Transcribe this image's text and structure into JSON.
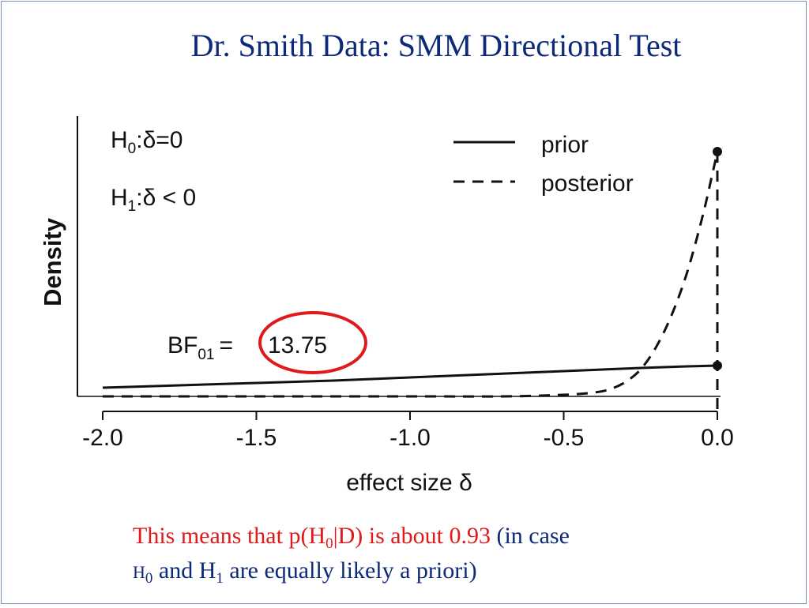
{
  "slide": {
    "title": "Dr. Smith Data: SMM Directional Test",
    "note_line1_red": "This means that p(H",
    "note_line1_red_sub": "0",
    "note_line1_red_end": "|D) is about 0.93",
    "note_line1_navy": " (in case",
    "note_line2_h": "H",
    "note_line2_h_sub": "0",
    "note_line2_mid": " and H",
    "note_line2_mid_sub": "1",
    "note_line2_end": " are equally likely a priori)"
  },
  "colors": {
    "title": "#0d2a78",
    "highlight_circle": "#e0191b",
    "note_red": "#e0191b"
  },
  "chart_data": {
    "type": "line",
    "xlabel": "effect size δ",
    "ylabel": "Density",
    "xlim": [
      -2.0,
      0.0
    ],
    "ylim": [
      0,
      3.6
    ],
    "x_ticks": [
      -2.0,
      -1.5,
      -1.0,
      -0.5,
      0.0
    ],
    "x_tick_labels": [
      "-2.0",
      "-1.5",
      "-1.0",
      "-0.5",
      "0.0"
    ],
    "legend_position": "top-right",
    "hypotheses": {
      "h0_main": "H",
      "h0_sub": "0",
      "h0_rest": ":δ=0",
      "h1_main": "H",
      "h1_sub": "1",
      "h1_rest": ":δ < 0"
    },
    "bayes_factor": {
      "label_main": "BF",
      "label_sub": "01",
      "equals": "=",
      "value": "13.75",
      "circled": true
    },
    "series": [
      {
        "name": "prior",
        "style": "solid",
        "x": [
          -2.0,
          -1.75,
          -1.5,
          -1.25,
          -1.0,
          -0.75,
          -0.5,
          -0.25,
          -0.1,
          0.0
        ],
        "y": [
          0.11,
          0.14,
          0.17,
          0.2,
          0.24,
          0.28,
          0.32,
          0.36,
          0.38,
          0.39
        ]
      },
      {
        "name": "posterior",
        "style": "dashed",
        "x": [
          -2.0,
          -1.5,
          -1.0,
          -0.7,
          -0.5,
          -0.4,
          -0.35,
          -0.3,
          -0.25,
          -0.2,
          -0.15,
          -0.1,
          -0.05,
          -0.02,
          0.0
        ],
        "y": [
          0.0,
          0.0,
          0.0,
          0.0,
          0.02,
          0.05,
          0.09,
          0.18,
          0.34,
          0.62,
          1.02,
          1.55,
          2.25,
          2.75,
          3.1
        ]
      }
    ],
    "point_markers": [
      {
        "series": "posterior",
        "x": 0.0,
        "y": 3.1
      },
      {
        "series": "prior",
        "x": 0.0,
        "y": 0.39
      }
    ]
  }
}
